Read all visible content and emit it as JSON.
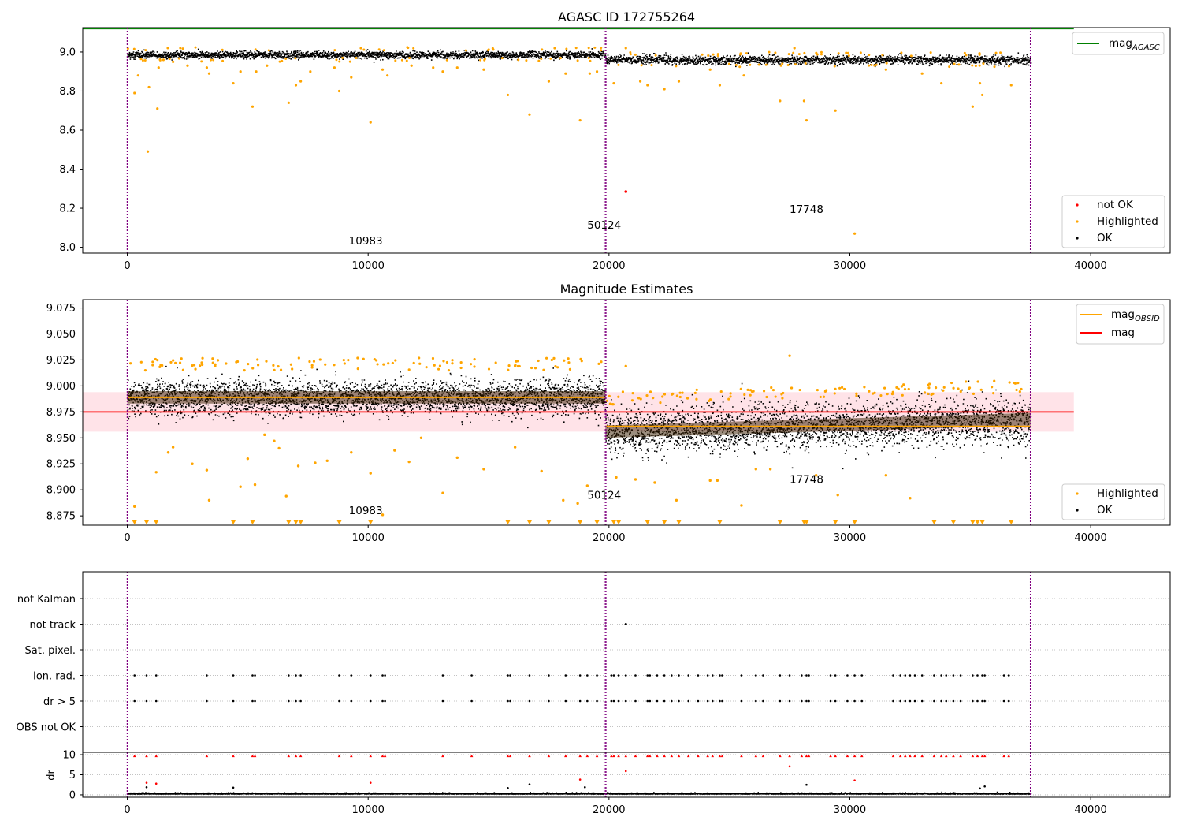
{
  "figure": {
    "colors": {
      "ok": "#000000",
      "highlighted": "#ffa500",
      "not_ok": "#ff0000",
      "mag_agasc": "#008000",
      "mag": "#ff0000",
      "mag_obsid": "#ffa500",
      "mag_band": "#ffc0cb",
      "obs_boundary": "#800080",
      "grid": "#b0b0b0"
    },
    "panels": [
      {
        "id": "agasc",
        "title": "AGASC ID 172755264",
        "type": "scatter",
        "xlim": [
          -1850,
          43300
        ],
        "ylim": [
          7.97,
          9.125
        ],
        "xticks": [
          0,
          10000,
          20000,
          30000,
          40000
        ],
        "yticks": [
          8.0,
          8.2,
          8.4,
          8.6,
          8.8,
          9.0
        ],
        "ytick_labels": [
          "8.0",
          "8.2",
          "8.4",
          "8.6",
          "8.8",
          "9.0"
        ],
        "mag_agasc": 9.12,
        "mag_agasc_xrange": [
          -1850,
          39300
        ],
        "legend_lines": [
          {
            "label": "mag",
            "sub": "AGASC",
            "color": "#008000"
          }
        ],
        "legend_points": [
          {
            "label": "not OK",
            "color": "#ff0000"
          },
          {
            "label": "Highlighted",
            "color": "#ffa500"
          },
          {
            "label": "OK",
            "color": "#000000"
          }
        ],
        "obsid_labels": [
          {
            "text": "10983",
            "x": 9900,
            "y": 8.015
          },
          {
            "text": "50124",
            "x": 19800,
            "y": 8.095
          },
          {
            "text": "17748",
            "x": 28200,
            "y": 8.175
          }
        ],
        "segments": [
          {
            "x_start": 0,
            "x_end": 19850,
            "mean": 8.988,
            "spread": 0.009
          },
          {
            "x_start": 19850,
            "x_end": 37500,
            "mean": 8.962,
            "spread": 0.011
          }
        ],
        "highlighted_points": [
          [
            300,
            8.79
          ],
          [
            450,
            8.88
          ],
          [
            850,
            8.49
          ],
          [
            900,
            8.82
          ],
          [
            1250,
            8.71
          ],
          [
            1300,
            8.92
          ],
          [
            1500,
            8.96
          ],
          [
            1900,
            8.95
          ],
          [
            2500,
            8.93
          ],
          [
            3300,
            8.92
          ],
          [
            3400,
            8.89
          ],
          [
            4400,
            8.84
          ],
          [
            4700,
            8.9
          ],
          [
            5200,
            8.72
          ],
          [
            5350,
            8.9
          ],
          [
            5800,
            8.93
          ],
          [
            6700,
            8.74
          ],
          [
            7000,
            8.83
          ],
          [
            7200,
            8.85
          ],
          [
            7600,
            8.9
          ],
          [
            8600,
            8.92
          ],
          [
            8800,
            8.8
          ],
          [
            9300,
            8.87
          ],
          [
            10100,
            8.64
          ],
          [
            10600,
            8.91
          ],
          [
            10800,
            8.88
          ],
          [
            11800,
            8.93
          ],
          [
            12700,
            8.92
          ],
          [
            13100,
            8.9
          ],
          [
            13700,
            8.92
          ],
          [
            14800,
            8.91
          ],
          [
            15800,
            8.78
          ],
          [
            16700,
            8.68
          ],
          [
            17500,
            8.85
          ],
          [
            18200,
            8.89
          ],
          [
            18800,
            8.65
          ],
          [
            19200,
            8.89
          ],
          [
            19500,
            8.9
          ],
          [
            20200,
            8.84
          ],
          [
            20700,
            9.02
          ],
          [
            21300,
            8.85
          ],
          [
            21600,
            8.83
          ],
          [
            22300,
            8.81
          ],
          [
            22900,
            8.85
          ],
          [
            24200,
            8.91
          ],
          [
            24600,
            8.83
          ],
          [
            25600,
            8.88
          ],
          [
            27100,
            8.75
          ],
          [
            28100,
            8.75
          ],
          [
            28200,
            8.65
          ],
          [
            29400,
            8.7
          ],
          [
            30200,
            8.07
          ],
          [
            31500,
            8.91
          ],
          [
            33000,
            8.89
          ],
          [
            33800,
            8.84
          ],
          [
            35100,
            8.72
          ],
          [
            35500,
            8.78
          ],
          [
            36700,
            8.83
          ],
          [
            35400,
            8.84
          ],
          [
            27700,
            9.02
          ]
        ],
        "not_ok_points": [
          [
            20700,
            8.285
          ]
        ]
      },
      {
        "id": "estimates",
        "title": "Magnitude Estimates",
        "type": "scatter",
        "xlim": [
          -1850,
          43300
        ],
        "ylim": [
          8.866,
          9.083
        ],
        "xticks": [
          0,
          10000,
          20000,
          30000,
          40000
        ],
        "yticks": [
          8.875,
          8.9,
          8.925,
          8.95,
          8.975,
          9.0,
          9.025,
          9.05,
          9.075
        ],
        "ytick_labels": [
          "8.875",
          "8.900",
          "8.925",
          "8.950",
          "8.975",
          "9.000",
          "9.025",
          "9.050",
          "9.075"
        ],
        "mag": 8.975,
        "mag_band": [
          8.956,
          8.994
        ],
        "mag_xrange": [
          -1850,
          39300
        ],
        "mag_obsid": [
          {
            "x_start": 0,
            "x_end": 19850,
            "value": 8.989
          },
          {
            "x_start": 19850,
            "x_end": 37500,
            "value": 8.961
          }
        ],
        "legend_lines": [
          {
            "label": "mag",
            "sub": "OBSID",
            "color": "#ffa500"
          },
          {
            "label": "mag",
            "sub": "",
            "color": "#ff0000"
          }
        ],
        "legend_points": [
          {
            "label": "Highlighted",
            "color": "#ffa500"
          },
          {
            "label": "OK",
            "color": "#000000"
          }
        ],
        "obsid_labels": [
          {
            "text": "10983",
            "x": 9900,
            "y": 8.8765
          },
          {
            "text": "50124",
            "x": 19800,
            "y": 8.8915
          },
          {
            "text": "17748",
            "x": 28200,
            "y": 8.9065
          }
        ],
        "segments": [
          {
            "x_start": 0,
            "x_end": 19850,
            "mean": 8.989,
            "spread": 0.0085
          },
          {
            "x_start": 19850,
            "x_end": 37500,
            "mean_start": 8.956,
            "mean_end": 8.968,
            "spread": 0.011
          }
        ],
        "highlighted_points": [
          [
            300,
            8.884
          ],
          [
            1200,
            8.917
          ],
          [
            1700,
            8.936
          ],
          [
            1900,
            8.941
          ],
          [
            2700,
            8.925
          ],
          [
            3300,
            8.919
          ],
          [
            3400,
            8.89
          ],
          [
            4700,
            8.903
          ],
          [
            5000,
            8.93
          ],
          [
            5300,
            8.905
          ],
          [
            5700,
            8.953
          ],
          [
            6100,
            8.947
          ],
          [
            6300,
            8.94
          ],
          [
            6600,
            8.894
          ],
          [
            7100,
            8.923
          ],
          [
            7800,
            8.926
          ],
          [
            8300,
            8.928
          ],
          [
            9300,
            8.936
          ],
          [
            10100,
            8.916
          ],
          [
            10600,
            8.876
          ],
          [
            11100,
            8.938
          ],
          [
            11700,
            8.927
          ],
          [
            12200,
            8.95
          ],
          [
            13100,
            8.897
          ],
          [
            13700,
            8.931
          ],
          [
            14800,
            8.92
          ],
          [
            16100,
            8.941
          ],
          [
            17200,
            8.918
          ],
          [
            18100,
            8.89
          ],
          [
            18700,
            8.887
          ],
          [
            19100,
            8.904
          ],
          [
            20700,
            9.019
          ],
          [
            20300,
            8.912
          ],
          [
            21100,
            8.91
          ],
          [
            21900,
            8.907
          ],
          [
            22800,
            8.89
          ],
          [
            24200,
            8.909
          ],
          [
            24500,
            8.909
          ],
          [
            25500,
            8.885
          ],
          [
            26100,
            8.92
          ],
          [
            26700,
            8.92
          ],
          [
            27500,
            9.029
          ],
          [
            28600,
            8.914
          ],
          [
            29500,
            8.895
          ],
          [
            31500,
            8.914
          ],
          [
            32500,
            8.892
          ]
        ],
        "clipped_x": [
          300,
          800,
          1200,
          4400,
          5200,
          6700,
          7000,
          7200,
          8800,
          10100,
          15800,
          16700,
          17500,
          18800,
          19500,
          20200,
          20400,
          21600,
          22300,
          22900,
          24600,
          27100,
          28100,
          28200,
          29400,
          30200,
          33500,
          34300,
          35100,
          35300,
          35500,
          36700
        ]
      },
      {
        "id": "flags",
        "type": "categorical",
        "xlim": [
          -1850,
          43300
        ],
        "categories": [
          "not Kalman",
          "not track",
          "Sat. pixel.",
          "Ion. rad.",
          "dr > 5",
          "OBS not OK"
        ],
        "xticks": [
          0,
          10000,
          20000,
          30000,
          40000
        ],
        "flag_x": [
          300,
          800,
          1200,
          3300,
          4400,
          5200,
          5300,
          6700,
          7000,
          7200,
          8800,
          9300,
          10100,
          10600,
          10700,
          13100,
          14300,
          15800,
          15900,
          16700,
          17500,
          18200,
          18800,
          19100,
          19500,
          20100,
          20200,
          20400,
          20700,
          21100,
          21600,
          21700,
          22000,
          22300,
          22600,
          22900,
          23300,
          23700,
          24100,
          24300,
          24600,
          24700,
          25500,
          26100,
          26400,
          27100,
          27500,
          28000,
          28200,
          28300,
          29200,
          29400,
          29900,
          30200,
          30500,
          31800,
          32100,
          32300,
          32500,
          32700,
          33000,
          33500,
          33800,
          34000,
          34300,
          34600,
          35100,
          35300,
          35500,
          35600,
          36400,
          36600
        ],
        "not_track_x": [
          20700
        ]
      },
      {
        "id": "dr",
        "type": "scatter",
        "xlim": [
          -1850,
          43300
        ],
        "ylim": [
          -0.6,
          10.6
        ],
        "ylabel": "dr",
        "yticks": [
          0,
          5,
          10
        ],
        "ytick_labels": [
          "0",
          "5",
          "10"
        ],
        "xticks": [
          0,
          10000,
          20000,
          30000,
          40000
        ],
        "red_points": [
          [
            800,
            3.0
          ],
          [
            1200,
            2.8
          ],
          [
            10100,
            3.0
          ],
          [
            18800,
            3.8
          ],
          [
            20700,
            5.9
          ],
          [
            27500,
            7.1
          ],
          [
            30200,
            3.6
          ]
        ],
        "black_outliers": [
          [
            800,
            1.9
          ],
          [
            4400,
            1.8
          ],
          [
            15800,
            1.7
          ],
          [
            16700,
            2.6
          ],
          [
            28200,
            2.5
          ],
          [
            35400,
            1.6
          ],
          [
            35600,
            2.1
          ],
          [
            19000,
            1.9
          ]
        ],
        "mean": 0.3
      }
    ],
    "obs_boundaries": [
      0,
      19800,
      19870,
      37500
    ],
    "x_tick_labels": [
      "0",
      "10000",
      "20000",
      "30000",
      "40000"
    ]
  }
}
